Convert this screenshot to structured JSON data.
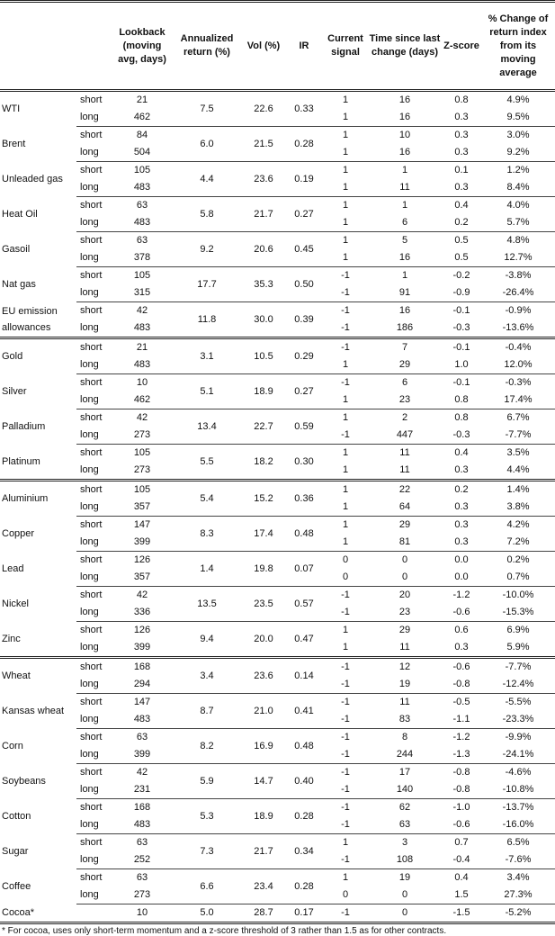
{
  "headers": [
    "",
    "",
    "Lookback (moving avg, days)",
    "Annualized return (%)",
    "Vol (%)",
    "IR",
    "Current signal",
    "Time since last change (days)",
    "Z-score",
    "% Change of return index from its moving average"
  ],
  "groups": [
    [
      {
        "name": "WTI",
        "ann": "7.5",
        "vol": "22.6",
        "ir": "0.33",
        "rows": [
          {
            "type": "short",
            "lookback": "21",
            "signal": "1",
            "time": "16",
            "z": "0.8",
            "pct": "4.9%"
          },
          {
            "type": "long",
            "lookback": "462",
            "signal": "1",
            "time": "16",
            "z": "0.3",
            "pct": "9.5%"
          }
        ]
      },
      {
        "name": "Brent",
        "ann": "6.0",
        "vol": "21.5",
        "ir": "0.28",
        "rows": [
          {
            "type": "short",
            "lookback": "84",
            "signal": "1",
            "time": "10",
            "z": "0.3",
            "pct": "3.0%"
          },
          {
            "type": "long",
            "lookback": "504",
            "signal": "1",
            "time": "16",
            "z": "0.3",
            "pct": "9.2%"
          }
        ]
      },
      {
        "name": "Unleaded gas",
        "ann": "4.4",
        "vol": "23.6",
        "ir": "0.19",
        "rows": [
          {
            "type": "short",
            "lookback": "105",
            "signal": "1",
            "time": "1",
            "z": "0.1",
            "pct": "1.2%"
          },
          {
            "type": "long",
            "lookback": "483",
            "signal": "1",
            "time": "11",
            "z": "0.3",
            "pct": "8.4%"
          }
        ]
      },
      {
        "name": "Heat Oil",
        "ann": "5.8",
        "vol": "21.7",
        "ir": "0.27",
        "rows": [
          {
            "type": "short",
            "lookback": "63",
            "signal": "1",
            "time": "1",
            "z": "0.4",
            "pct": "4.0%"
          },
          {
            "type": "long",
            "lookback": "483",
            "signal": "1",
            "time": "6",
            "z": "0.2",
            "pct": "5.7%"
          }
        ]
      },
      {
        "name": "Gasoil",
        "ann": "9.2",
        "vol": "20.6",
        "ir": "0.45",
        "rows": [
          {
            "type": "short",
            "lookback": "63",
            "signal": "1",
            "time": "5",
            "z": "0.5",
            "pct": "4.8%"
          },
          {
            "type": "long",
            "lookback": "378",
            "signal": "1",
            "time": "16",
            "z": "0.5",
            "pct": "12.7%"
          }
        ]
      },
      {
        "name": "Nat gas",
        "ann": "17.7",
        "vol": "35.3",
        "ir": "0.50",
        "rows": [
          {
            "type": "short",
            "lookback": "105",
            "signal": "-1",
            "time": "1",
            "z": "-0.2",
            "pct": "-3.8%"
          },
          {
            "type": "long",
            "lookback": "315",
            "signal": "-1",
            "time": "91",
            "z": "-0.9",
            "pct": "-26.4%"
          }
        ]
      },
      {
        "name": "EU emission allowances",
        "ann": "11.8",
        "vol": "30.0",
        "ir": "0.39",
        "rows": [
          {
            "type": "short",
            "lookback": "42",
            "signal": "-1",
            "time": "16",
            "z": "-0.1",
            "pct": "-0.9%"
          },
          {
            "type": "long",
            "lookback": "483",
            "signal": "-1",
            "time": "186",
            "z": "-0.3",
            "pct": "-13.6%"
          }
        ]
      }
    ],
    [
      {
        "name": "Gold",
        "ann": "3.1",
        "vol": "10.5",
        "ir": "0.29",
        "rows": [
          {
            "type": "short",
            "lookback": "21",
            "signal": "-1",
            "time": "7",
            "z": "-0.1",
            "pct": "-0.4%"
          },
          {
            "type": "long",
            "lookback": "483",
            "signal": "1",
            "time": "29",
            "z": "1.0",
            "pct": "12.0%"
          }
        ]
      },
      {
        "name": "Silver",
        "ann": "5.1",
        "vol": "18.9",
        "ir": "0.27",
        "rows": [
          {
            "type": "short",
            "lookback": "10",
            "signal": "-1",
            "time": "6",
            "z": "-0.1",
            "pct": "-0.3%"
          },
          {
            "type": "long",
            "lookback": "462",
            "signal": "1",
            "time": "23",
            "z": "0.8",
            "pct": "17.4%"
          }
        ]
      },
      {
        "name": "Palladium",
        "ann": "13.4",
        "vol": "22.7",
        "ir": "0.59",
        "rows": [
          {
            "type": "short",
            "lookback": "42",
            "signal": "1",
            "time": "2",
            "z": "0.8",
            "pct": "6.7%"
          },
          {
            "type": "long",
            "lookback": "273",
            "signal": "-1",
            "time": "447",
            "z": "-0.3",
            "pct": "-7.7%"
          }
        ]
      },
      {
        "name": "Platinum",
        "ann": "5.5",
        "vol": "18.2",
        "ir": "0.30",
        "rows": [
          {
            "type": "short",
            "lookback": "105",
            "signal": "1",
            "time": "11",
            "z": "0.4",
            "pct": "3.5%"
          },
          {
            "type": "long",
            "lookback": "273",
            "signal": "1",
            "time": "11",
            "z": "0.3",
            "pct": "4.4%"
          }
        ]
      }
    ],
    [
      {
        "name": "Aluminium",
        "ann": "5.4",
        "vol": "15.2",
        "ir": "0.36",
        "rows": [
          {
            "type": "short",
            "lookback": "105",
            "signal": "1",
            "time": "22",
            "z": "0.2",
            "pct": "1.4%"
          },
          {
            "type": "long",
            "lookback": "357",
            "signal": "1",
            "time": "64",
            "z": "0.3",
            "pct": "3.8%"
          }
        ]
      },
      {
        "name": "Copper",
        "ann": "8.3",
        "vol": "17.4",
        "ir": "0.48",
        "rows": [
          {
            "type": "short",
            "lookback": "147",
            "signal": "1",
            "time": "29",
            "z": "0.3",
            "pct": "4.2%"
          },
          {
            "type": "long",
            "lookback": "399",
            "signal": "1",
            "time": "81",
            "z": "0.3",
            "pct": "7.2%"
          }
        ]
      },
      {
        "name": "Lead",
        "ann": "1.4",
        "vol": "19.8",
        "ir": "0.07",
        "rows": [
          {
            "type": "short",
            "lookback": "126",
            "signal": "0",
            "time": "0",
            "z": "0.0",
            "pct": "0.2%"
          },
          {
            "type": "long",
            "lookback": "357",
            "signal": "0",
            "time": "0",
            "z": "0.0",
            "pct": "0.7%"
          }
        ]
      },
      {
        "name": "Nickel",
        "ann": "13.5",
        "vol": "23.5",
        "ir": "0.57",
        "rows": [
          {
            "type": "short",
            "lookback": "42",
            "signal": "-1",
            "time": "20",
            "z": "-1.2",
            "pct": "-10.0%"
          },
          {
            "type": "long",
            "lookback": "336",
            "signal": "-1",
            "time": "23",
            "z": "-0.6",
            "pct": "-15.3%"
          }
        ]
      },
      {
        "name": "Zinc",
        "ann": "9.4",
        "vol": "20.0",
        "ir": "0.47",
        "rows": [
          {
            "type": "short",
            "lookback": "126",
            "signal": "1",
            "time": "29",
            "z": "0.6",
            "pct": "6.9%"
          },
          {
            "type": "long",
            "lookback": "399",
            "signal": "1",
            "time": "11",
            "z": "0.3",
            "pct": "5.9%"
          }
        ]
      }
    ],
    [
      {
        "name": "Wheat",
        "ann": "3.4",
        "vol": "23.6",
        "ir": "0.14",
        "rows": [
          {
            "type": "short",
            "lookback": "168",
            "signal": "-1",
            "time": "12",
            "z": "-0.6",
            "pct": "-7.7%"
          },
          {
            "type": "long",
            "lookback": "294",
            "signal": "-1",
            "time": "19",
            "z": "-0.8",
            "pct": "-12.4%"
          }
        ]
      },
      {
        "name": "Kansas wheat",
        "ann": "8.7",
        "vol": "21.0",
        "ir": "0.41",
        "rows": [
          {
            "type": "short",
            "lookback": "147",
            "signal": "-1",
            "time": "11",
            "z": "-0.5",
            "pct": "-5.5%"
          },
          {
            "type": "long",
            "lookback": "483",
            "signal": "-1",
            "time": "83",
            "z": "-1.1",
            "pct": "-23.3%"
          }
        ]
      },
      {
        "name": "Corn",
        "ann": "8.2",
        "vol": "16.9",
        "ir": "0.48",
        "rows": [
          {
            "type": "short",
            "lookback": "63",
            "signal": "-1",
            "time": "8",
            "z": "-1.2",
            "pct": "-9.9%"
          },
          {
            "type": "long",
            "lookback": "399",
            "signal": "-1",
            "time": "244",
            "z": "-1.3",
            "pct": "-24.1%"
          }
        ]
      },
      {
        "name": "Soybeans",
        "ann": "5.9",
        "vol": "14.7",
        "ir": "0.40",
        "rows": [
          {
            "type": "short",
            "lookback": "42",
            "signal": "-1",
            "time": "17",
            "z": "-0.8",
            "pct": "-4.6%"
          },
          {
            "type": "long",
            "lookback": "231",
            "signal": "-1",
            "time": "140",
            "z": "-0.8",
            "pct": "-10.8%"
          }
        ]
      },
      {
        "name": "Cotton",
        "ann": "5.3",
        "vol": "18.9",
        "ir": "0.28",
        "rows": [
          {
            "type": "short",
            "lookback": "168",
            "signal": "-1",
            "time": "62",
            "z": "-1.0",
            "pct": "-13.7%"
          },
          {
            "type": "long",
            "lookback": "483",
            "signal": "-1",
            "time": "63",
            "z": "-0.6",
            "pct": "-16.0%"
          }
        ]
      },
      {
        "name": "Sugar",
        "ann": "7.3",
        "vol": "21.7",
        "ir": "0.34",
        "rows": [
          {
            "type": "short",
            "lookback": "63",
            "signal": "1",
            "time": "3",
            "z": "0.7",
            "pct": "6.5%"
          },
          {
            "type": "long",
            "lookback": "252",
            "signal": "-1",
            "time": "108",
            "z": "-0.4",
            "pct": "-7.6%"
          }
        ]
      },
      {
        "name": "Coffee",
        "ann": "6.6",
        "vol": "23.4",
        "ir": "0.28",
        "rows": [
          {
            "type": "short",
            "lookback": "63",
            "signal": "1",
            "time": "19",
            "z": "0.4",
            "pct": "3.4%"
          },
          {
            "type": "long",
            "lookback": "273",
            "signal": "0",
            "time": "0",
            "z": "1.5",
            "pct": "27.3%"
          }
        ]
      },
      {
        "name": "Cocoa*",
        "ann": "5.0",
        "vol": "28.7",
        "ir": "0.17",
        "rows": [
          {
            "type": "",
            "lookback": "10",
            "signal": "-1",
            "time": "0",
            "z": "-1.5",
            "pct": "-5.2%"
          }
        ]
      }
    ]
  ],
  "footnote": "* For cocoa, uses only short-term momentum and a z-score threshold of 3 rather than 1.5 as for other contracts."
}
